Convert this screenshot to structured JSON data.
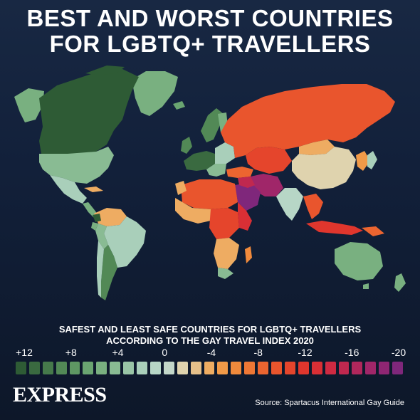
{
  "title": {
    "line1": "BEST AND WORST COUNTRIES",
    "line2": "FOR LGBTQ+ TRAVELLERS"
  },
  "legend": {
    "subtitle_line1": "SAFEST AND LEAST SAFE COUNTRIES FOR LGBTQ+ TRAVELLERS",
    "subtitle_line2": "ACCORDING TO THE GAY TRAVEL INDEX 2020",
    "labels": [
      "+12",
      "+8",
      "+4",
      "0",
      "-4",
      "-8",
      "-12",
      "-16",
      "-20"
    ],
    "scale_min": -20,
    "scale_max": 12,
    "swatch_colors": [
      "#2e5b35",
      "#3a6a40",
      "#467a4b",
      "#528956",
      "#5e9763",
      "#6aa571",
      "#79b080",
      "#89bb93",
      "#99c5a6",
      "#a9cfba",
      "#b7d6c6",
      "#c3d7c9",
      "#dfd3ae",
      "#e6c08a",
      "#eeac62",
      "#f19a48",
      "#f08a3c",
      "#ee7735",
      "#ec6530",
      "#e9552d",
      "#e5452c",
      "#e0362d",
      "#d92f35",
      "#cf2a42",
      "#c0284f",
      "#b0275c",
      "#a02669",
      "#8f2673",
      "#7f277b"
    ]
  },
  "brand": "EXPRESS",
  "source": "Source: Spartacus International Gay Guide",
  "colors": {
    "background": "#12203a",
    "safest": "#2e5b35",
    "neutral": "#c3d7c9",
    "least_safe": "#7f277b"
  }
}
